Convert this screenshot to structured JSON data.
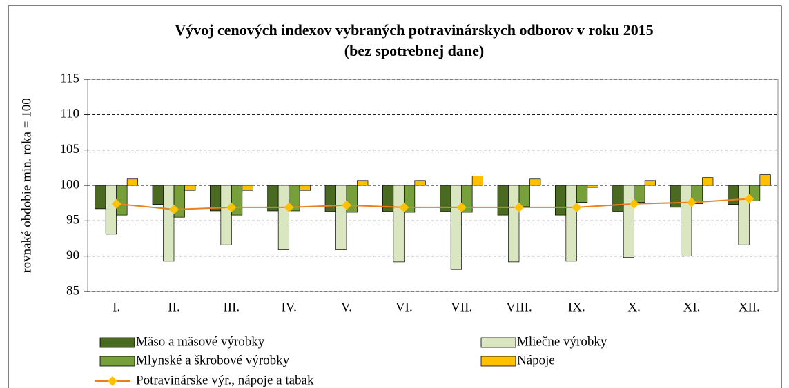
{
  "chart_data": {
    "type": "bar",
    "title": "Vývoj cenových indexov vybraných potravinárskych odborov v roku 2015",
    "subtitle": "(bez spotrebnej dane)",
    "y_label": "rovnaké obdobie min. roka = 100",
    "categories": [
      "I.",
      "II.",
      "III.",
      "IV.",
      "V.",
      "VI.",
      "VII.",
      "VIII.",
      "IX.",
      "X.",
      "XI.",
      "XII."
    ],
    "baseline": 100,
    "series": [
      {
        "name": "Mäso a mäsové výrobky",
        "color": "#4a6a22",
        "values": [
          96.7,
          97.3,
          96.4,
          96.4,
          96.3,
          96.3,
          96.3,
          95.8,
          95.8,
          96.3,
          96.9,
          97.3
        ]
      },
      {
        "name": "Mliečne výrobky",
        "color": "#d9e6bf",
        "values": [
          93.1,
          89.3,
          91.6,
          90.9,
          90.9,
          89.2,
          88.1,
          89.2,
          89.3,
          89.8,
          90.0,
          91.6
        ]
      },
      {
        "name": "Mlynské a škrobové výrobky",
        "color": "#77a03a",
        "values": [
          95.8,
          95.5,
          95.8,
          96.4,
          96.2,
          96.2,
          96.2,
          97.0,
          97.6,
          97.6,
          97.4,
          97.8
        ]
      },
      {
        "name": "Nápoje",
        "color": "#ffc000",
        "values": [
          100.9,
          99.3,
          99.3,
          99.3,
          100.7,
          100.7,
          101.3,
          100.9,
          99.7,
          100.7,
          101.1,
          101.5
        ]
      },
      {
        "name": "Potravinárske výr., nápoje a tabak",
        "color": "#e8801f",
        "marker_color": "#ffc000",
        "type": "line",
        "values": [
          97.4,
          96.6,
          96.9,
          96.9,
          97.2,
          96.9,
          96.9,
          96.9,
          96.9,
          97.4,
          97.6,
          98.1
        ]
      }
    ],
    "ylim": [
      85,
      115
    ],
    "yticks": [
      85,
      90,
      95,
      100,
      105,
      110,
      115
    ],
    "grid": true
  }
}
